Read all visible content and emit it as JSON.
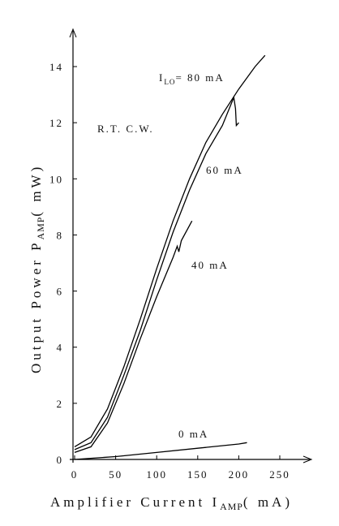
{
  "chart_data": {
    "type": "line",
    "x_label": {
      "text": "Amplifier Current I",
      "sub": "AMP",
      "after": "( mA)"
    },
    "y_label": {
      "text": "Output Power P",
      "sub": "AMP",
      "after": "( mW)"
    },
    "annotations": [
      {
        "text": "I",
        "sub": "LO",
        "after": "= 80 mA"
      },
      {
        "text": "60 mA"
      },
      {
        "text": "40 mA"
      },
      {
        "text": "0 mA"
      },
      {
        "text": "R.T. C.W."
      }
    ],
    "xlim": [
      -2,
      285
    ],
    "ylim": [
      0,
      15.3
    ],
    "xticks": [
      0,
      50,
      100,
      150,
      200,
      250
    ],
    "yticks": [
      0,
      2,
      4,
      6,
      8,
      10,
      12,
      14
    ],
    "series": [
      {
        "color": "#000000",
        "x": [
          0,
          20,
          40,
          60,
          80,
          100,
          120,
          140,
          160,
          180,
          200,
          220,
          232
        ],
        "values": [
          0.45,
          0.8,
          1.8,
          3.3,
          5.0,
          6.8,
          8.5,
          10.0,
          11.3,
          12.3,
          13.2,
          14.0,
          14.4
        ]
      },
      {
        "color": "#000000",
        "x": [
          0,
          20,
          40,
          60,
          80,
          100,
          120,
          140,
          160,
          180,
          194,
          196,
          197,
          200
        ],
        "values": [
          0.35,
          0.6,
          1.5,
          3.0,
          4.6,
          6.4,
          8.1,
          9.6,
          10.9,
          11.9,
          12.9,
          12.5,
          11.9,
          12.0
        ]
      },
      {
        "color": "#000000",
        "x": [
          0,
          20,
          40,
          60,
          80,
          100,
          120,
          125,
          127,
          130,
          143
        ],
        "values": [
          0.25,
          0.45,
          1.3,
          2.7,
          4.3,
          5.8,
          7.2,
          7.6,
          7.4,
          7.8,
          8.5
        ]
      },
      {
        "color": "#000000",
        "x": [
          0,
          50,
          100,
          150,
          200,
          210
        ],
        "values": [
          0.0,
          0.1,
          0.25,
          0.4,
          0.55,
          0.6
        ]
      }
    ]
  }
}
